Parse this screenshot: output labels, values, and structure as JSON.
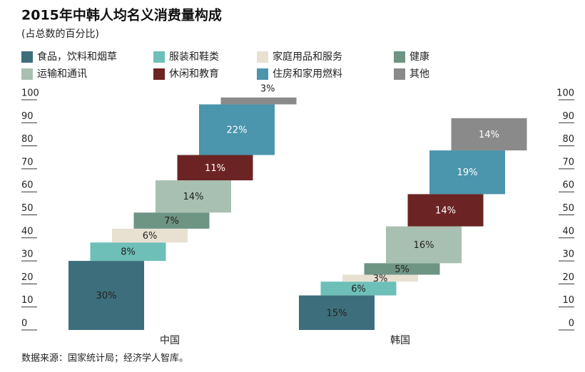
{
  "chart_data": {
    "type": "staggered_stacked_bar",
    "title": "2015年中韩人均名义消费量构成",
    "subtitle": "(占总数的百分比)",
    "source": "数据来源：国家统计局；经济学人智库。",
    "categories": [
      "中国",
      "韩国"
    ],
    "ylim": [
      0,
      100
    ],
    "yticks": [
      0,
      10,
      20,
      30,
      40,
      50,
      60,
      70,
      80,
      90,
      100
    ],
    "series": [
      {
        "name": "食品，饮料和烟草",
        "color": "#3d6e7c",
        "values": [
          30,
          15
        ],
        "value_labels": [
          "30%",
          "15%"
        ]
      },
      {
        "name": "服装和鞋类",
        "color": "#6dbfb8",
        "values": [
          8,
          6
        ],
        "value_labels": [
          "8%",
          "6%"
        ]
      },
      {
        "name": "家庭用品和服务",
        "color": "#e8e1d2",
        "values": [
          6,
          3
        ],
        "value_labels": [
          "6%",
          "3%"
        ]
      },
      {
        "name": "健康",
        "color": "#6e9484",
        "values": [
          7,
          5
        ],
        "value_labels": [
          "7%",
          "5%"
        ]
      },
      {
        "name": "运输和通讯",
        "color": "#a8c0b1",
        "values": [
          14,
          16
        ],
        "value_labels": [
          "14%",
          "16%"
        ]
      },
      {
        "name": "休闲和教育",
        "color": "#6b2423",
        "values": [
          11,
          14
        ],
        "value_labels": [
          "11%",
          "14%"
        ]
      },
      {
        "name": "住房和家用燃料",
        "color": "#4b95ad",
        "values": [
          22,
          19
        ],
        "value_labels": [
          "22%",
          "19%"
        ]
      },
      {
        "name": "其他",
        "color": "#8a8a8a",
        "values": [
          3,
          14
        ],
        "value_labels": [
          "3%",
          "14%"
        ]
      }
    ]
  }
}
